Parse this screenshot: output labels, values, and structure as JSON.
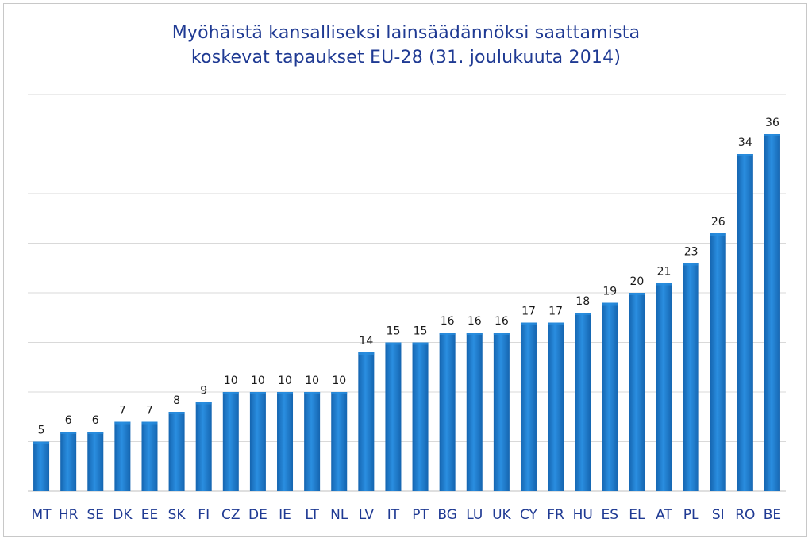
{
  "chart_data": {
    "type": "bar",
    "title_line1": "Myöhäistä kansalliseksi lainsäädännöksi saattamista",
    "title_line2": "koskevat tapaukset EU-28 (31. joulukuuta 2014)",
    "xlabel": "",
    "ylabel": "",
    "ylim": [
      0,
      40
    ],
    "grid": true,
    "legend": "none",
    "bar_color": "#1565b0",
    "bar_highlight": "#2a8ee0",
    "grid_color": "#d9d9d9",
    "categories": [
      "MT",
      "HR",
      "SE",
      "DK",
      "EE",
      "SK",
      "FI",
      "CZ",
      "DE",
      "IE",
      "LT",
      "NL",
      "LV",
      "IT",
      "PT",
      "BG",
      "LU",
      "UK",
      "CY",
      "FR",
      "HU",
      "ES",
      "EL",
      "AT",
      "PL",
      "SI",
      "RO",
      "BE"
    ],
    "values": [
      5,
      6,
      6,
      7,
      7,
      8,
      9,
      10,
      10,
      10,
      10,
      10,
      14,
      15,
      15,
      16,
      16,
      16,
      17,
      17,
      18,
      19,
      20,
      21,
      23,
      26,
      34,
      36
    ]
  }
}
